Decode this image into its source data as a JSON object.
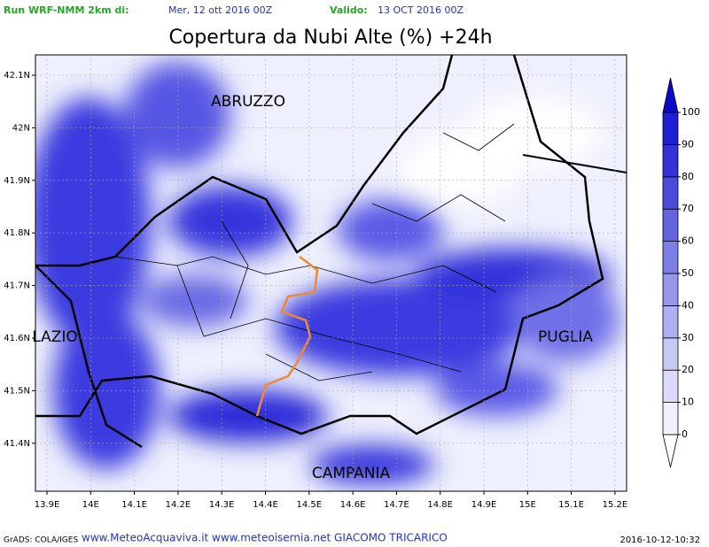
{
  "header": {
    "run_label": "Run WRF-NMM 2km di:",
    "run_date": "Mer, 12 ott 2016 00Z",
    "valid_label": "Valido:",
    "valid_date": "13 OCT 2016 00Z"
  },
  "title": "Copertura da Nubi Alte (%) +24h",
  "map": {
    "lat_labels": [
      "42.1N",
      "42N",
      "41.9N",
      "41.8N",
      "41.7N",
      "41.6N",
      "41.5N",
      "41.4N"
    ],
    "lon_labels": [
      "13.9E",
      "14E",
      "14.1E",
      "14.2E",
      "14.3E",
      "14.4E",
      "14.5E",
      "14.6E",
      "14.7E",
      "14.8E",
      "14.9E",
      "15E",
      "15.1E",
      "15.2E"
    ],
    "regions": [
      "ABRUZZO",
      "LAZIO",
      "PUGLIA",
      "CAMPANIA"
    ]
  },
  "colorbar": {
    "levels": [
      0,
      10,
      20,
      30,
      40,
      50,
      60,
      70,
      80,
      90,
      100
    ],
    "colors": [
      "#ffffff",
      "#f0f0ff",
      "#dcdcfa",
      "#c8c8f5",
      "#aeaef0",
      "#9696eb",
      "#7d7de6",
      "#6464e0",
      "#4b4bdc",
      "#3232d7",
      "#1e1ed2",
      "#0a0ac8"
    ]
  },
  "footer": {
    "software": "GrADS: COLA/IGES",
    "credits": "www.MeteoAcquaviva.it www.meteoisernia.net GIACOMO TRICARICO",
    "timestamp": "2016-10-12-10:32"
  }
}
